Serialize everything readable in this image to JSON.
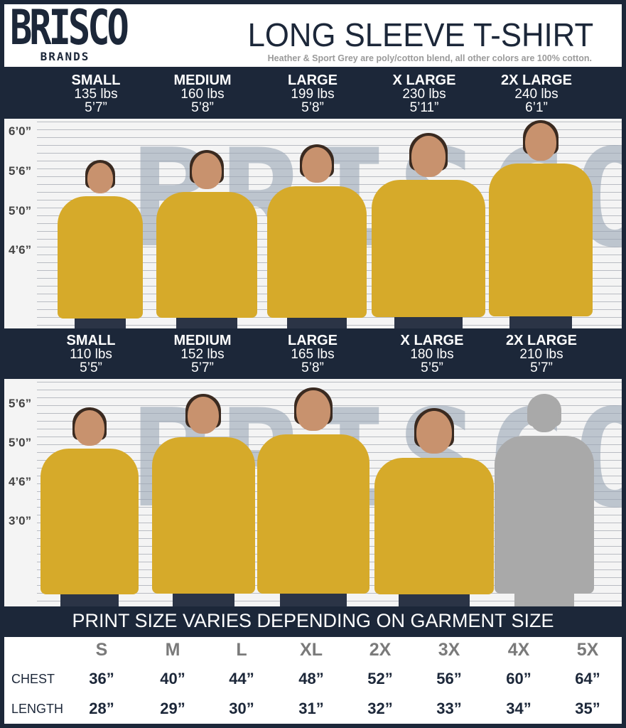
{
  "brand": {
    "logo_line1": "BRISCO",
    "logo_line2": "BRANDS"
  },
  "header": {
    "title": "LONG SLEEVE T-SHIRT",
    "subtitle": "Heather & Sport Grey are poly/cotton blend, all other colors are 100% cotton."
  },
  "men": {
    "models": [
      {
        "size": "SMALL",
        "weight": "135 lbs",
        "height": "5’7”"
      },
      {
        "size": "MEDIUM",
        "weight": "160 lbs",
        "height": "5’8”"
      },
      {
        "size": "LARGE",
        "weight": "199 lbs",
        "height": "5’8”"
      },
      {
        "size": "X LARGE",
        "weight": "230 lbs",
        "height": "5’11”"
      },
      {
        "size": "2X LARGE",
        "weight": "240 lbs",
        "height": "6’1”"
      }
    ],
    "height_marks": [
      "6’0”",
      "5’6”",
      "5’0”",
      "4’6”"
    ]
  },
  "women": {
    "models": [
      {
        "size": "SMALL",
        "weight": "110 lbs",
        "height": "5’5”"
      },
      {
        "size": "MEDIUM",
        "weight": "152 lbs",
        "height": "5’7”"
      },
      {
        "size": "LARGE",
        "weight": "165 lbs",
        "height": "5’8”"
      },
      {
        "size": "X LARGE",
        "weight": "180 lbs",
        "height": "5’5”"
      },
      {
        "size": "2X LARGE",
        "weight": "210 lbs",
        "height": "5’7”"
      }
    ],
    "height_marks": [
      "5’6”",
      "5’0”",
      "4’6”",
      "3’0”"
    ]
  },
  "shirt_color": "#d6aa2a",
  "print_note": "PRINT SIZE VARIES DEPENDING ON GARMENT SIZE",
  "size_table": {
    "sizes": [
      "S",
      "M",
      "L",
      "XL",
      "2X",
      "3X",
      "4X",
      "5X"
    ],
    "rows": [
      {
        "label": "CHEST",
        "values": [
          "36”",
          "40”",
          "44”",
          "48”",
          "52”",
          "56”",
          "60”",
          "64”"
        ]
      },
      {
        "label": "LENGTH",
        "values": [
          "28”",
          "29”",
          "30”",
          "31”",
          "32”",
          "33”",
          "34”",
          "35”"
        ]
      }
    ]
  }
}
